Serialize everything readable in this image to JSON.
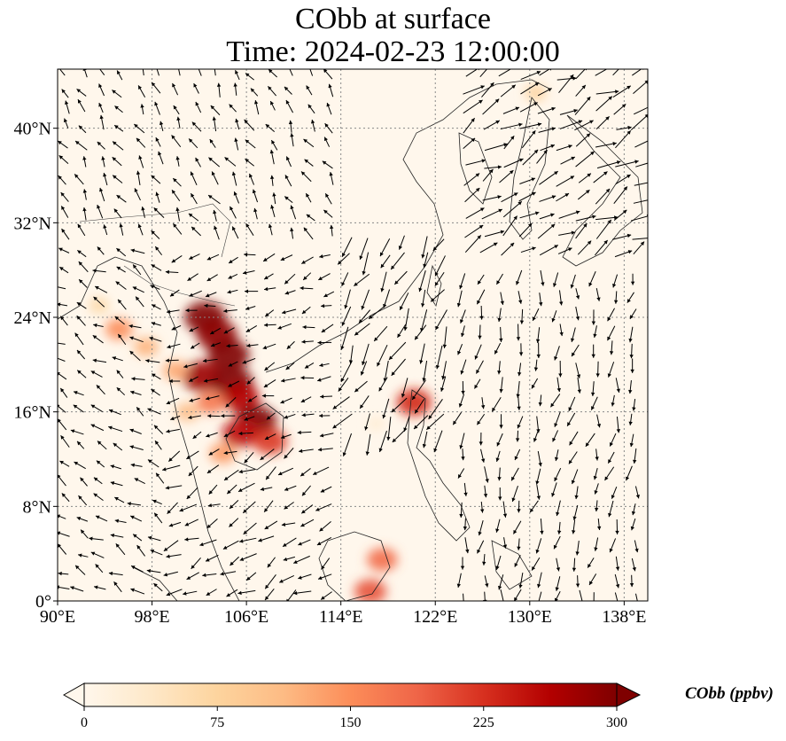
{
  "title": {
    "line1": "CObb at surface",
    "line2": "Time: 2024-02-23 12:00:00"
  },
  "map": {
    "lon_range": [
      90,
      140
    ],
    "lat_range": [
      0,
      45
    ],
    "lon_ticks": [
      {
        "value": 90,
        "label": "90°E"
      },
      {
        "value": 98,
        "label": "98°E"
      },
      {
        "value": 106,
        "label": "106°E"
      },
      {
        "value": 114,
        "label": "114°E"
      },
      {
        "value": 122,
        "label": "122°E"
      },
      {
        "value": 130,
        "label": "130°E"
      },
      {
        "value": 138,
        "label": "138°E"
      }
    ],
    "lat_ticks": [
      {
        "value": 0,
        "label": "0°"
      },
      {
        "value": 8,
        "label": "8°N"
      },
      {
        "value": 16,
        "label": "16°N"
      },
      {
        "value": 24,
        "label": "24°N"
      },
      {
        "value": 32,
        "label": "32°N"
      },
      {
        "value": 40,
        "label": "40°N"
      }
    ],
    "gridlines": true,
    "background_color": "#fff7ec",
    "hotspots": [
      {
        "lon": 102.5,
        "lat": 24.0,
        "value": 300
      },
      {
        "lon": 103.5,
        "lat": 22.5,
        "value": 290
      },
      {
        "lon": 104.5,
        "lat": 20.8,
        "value": 300
      },
      {
        "lon": 102.2,
        "lat": 19.0,
        "value": 280
      },
      {
        "lon": 104.8,
        "lat": 18.5,
        "value": 300
      },
      {
        "lon": 105.5,
        "lat": 17.2,
        "value": 260
      },
      {
        "lon": 106.8,
        "lat": 15.2,
        "value": 300
      },
      {
        "lon": 105.5,
        "lat": 14.2,
        "value": 250
      },
      {
        "lon": 108.0,
        "lat": 13.5,
        "value": 220
      },
      {
        "lon": 103.0,
        "lat": 16.8,
        "value": 170
      },
      {
        "lon": 95.2,
        "lat": 23.0,
        "value": 150
      },
      {
        "lon": 97.5,
        "lat": 21.5,
        "value": 120
      },
      {
        "lon": 100.0,
        "lat": 19.5,
        "value": 130
      },
      {
        "lon": 101.0,
        "lat": 16.0,
        "value": 110
      },
      {
        "lon": 104.0,
        "lat": 12.5,
        "value": 140
      },
      {
        "lon": 120.2,
        "lat": 16.8,
        "value": 230
      },
      {
        "lon": 117.5,
        "lat": 3.5,
        "value": 180
      },
      {
        "lon": 116.5,
        "lat": 0.8,
        "value": 200
      },
      {
        "lon": 93.5,
        "lat": 25.0,
        "value": 70
      },
      {
        "lon": 117.0,
        "lat": 15.0,
        "value": 30
      },
      {
        "lon": 130.5,
        "lat": 43.0,
        "value": 80
      }
    ],
    "wind_regions": [
      {
        "lon": [
          90,
          114
        ],
        "lat": [
          30,
          45
        ],
        "dir_deg": 330,
        "speed": 0.5
      },
      {
        "lon": [
          114,
          124
        ],
        "lat": [
          14,
          32
        ],
        "dir_deg": 210,
        "speed": 1.0
      },
      {
        "lon": [
          124,
          140
        ],
        "lat": [
          28,
          45
        ],
        "dir_deg": 60,
        "speed": 1.0
      },
      {
        "lon": [
          124,
          140
        ],
        "lat": [
          0,
          28
        ],
        "dir_deg": 190,
        "speed": 0.6
      },
      {
        "lon": [
          100,
          114
        ],
        "lat": [
          0,
          14
        ],
        "dir_deg": 240,
        "speed": 0.7
      },
      {
        "lon": [
          90,
          100
        ],
        "lat": [
          0,
          30
        ],
        "dir_deg": 300,
        "speed": 0.5
      },
      {
        "lon": [
          100,
          114
        ],
        "lat": [
          14,
          30
        ],
        "dir_deg": 250,
        "speed": 0.5
      }
    ]
  },
  "colorbar": {
    "label": "CObb (ppbv)",
    "min": 0,
    "max": 300,
    "ticks": [
      {
        "value": 0,
        "label": "0"
      },
      {
        "value": 75,
        "label": "75"
      },
      {
        "value": 150,
        "label": "150"
      },
      {
        "value": 225,
        "label": "225"
      },
      {
        "value": 300,
        "label": "300"
      }
    ],
    "colormap": [
      "#fff7ec",
      "#fee8c8",
      "#fdd49e",
      "#fdbb84",
      "#fc8d59",
      "#ef6548",
      "#d7301f",
      "#b30000",
      "#7f0000"
    ],
    "extend": "both"
  }
}
